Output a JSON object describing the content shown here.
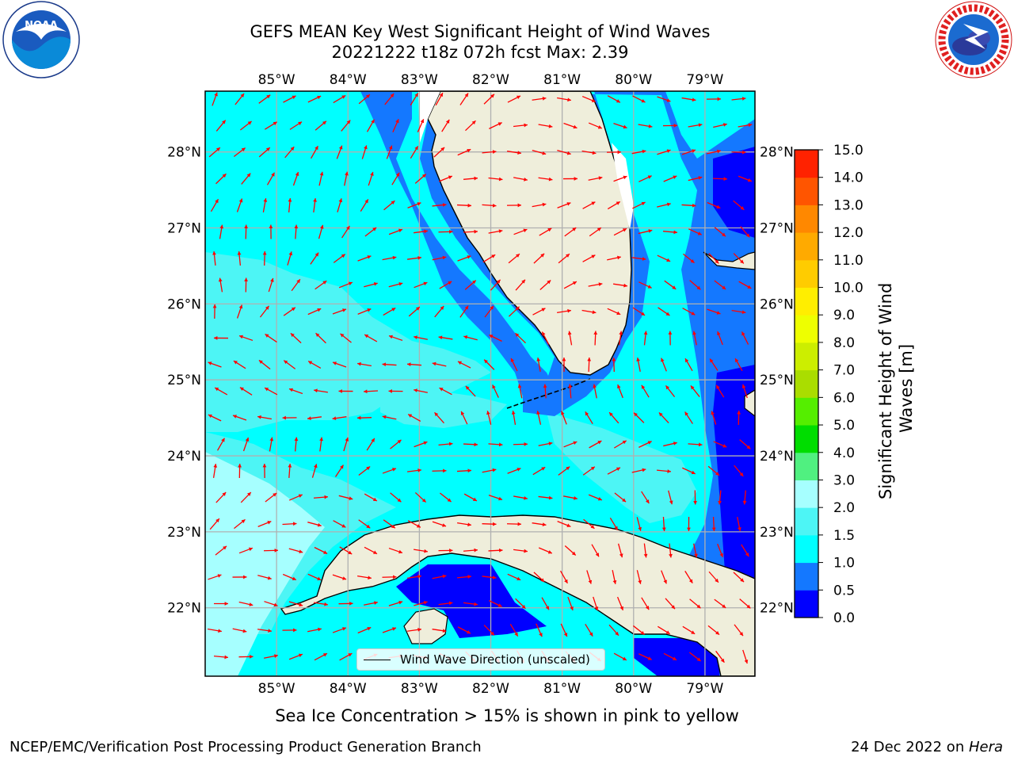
{
  "header": {
    "title_line1": "GEFS MEAN Key West Significant Height of Wind Waves",
    "title_line2": "20221222 t18z 072h fcst   Max: 2.39"
  },
  "logos": {
    "noaa": {
      "icon": "noaa-logo",
      "text": "NOAA",
      "ring_text": "NATIONAL OCEANIC AND ATMOSPHERIC ADMINISTRATION · U.S. DEPARTMENT OF COMMERCE"
    },
    "nws": {
      "icon": "nws-logo",
      "ring_text": "NATIONAL WEATHER SERVICE"
    }
  },
  "map": {
    "lon_ticks": [
      "85°W",
      "84°W",
      "83°W",
      "82°W",
      "81°W",
      "80°W",
      "79°W"
    ],
    "lat_ticks": [
      "28°N",
      "27°N",
      "26°N",
      "25°N",
      "24°N",
      "23°N",
      "22°N"
    ],
    "lon_range": [
      -86.0,
      -78.3
    ],
    "lat_range": [
      21.1,
      28.8
    ],
    "colors": {
      "land": "#efeedb",
      "arrow": "#ff0000",
      "grid": "#b0b0b0"
    },
    "legend": {
      "label": "Wind Wave Direction (unscaled)"
    }
  },
  "colorbar": {
    "label": "Significant Height of Wind Waves [m]",
    "tick_labels": [
      "0.0",
      "0.5",
      "1.0",
      "1.5",
      "2.0",
      "3.0",
      "4.0",
      "5.0",
      "6.0",
      "7.0",
      "8.0",
      "9.0",
      "10.0",
      "11.0",
      "12.0",
      "13.0",
      "14.0",
      "15.0"
    ],
    "colors": [
      "#0000ff",
      "#1478ff",
      "#00ffff",
      "#4df5f5",
      "#a6ffff",
      "#50f080",
      "#00dd00",
      "#55ee00",
      "#aadd00",
      "#ccee00",
      "#eeff00",
      "#ffee00",
      "#ffcc00",
      "#ffaa00",
      "#ff8800",
      "#ff5500",
      "#ff2200"
    ]
  },
  "caption": "Sea Ice Concentration > 15% is shown in pink to yellow",
  "footer": {
    "left": "NCEP/EMC/Verification Post Processing Product Generation Branch",
    "right_prefix": "24 Dec 2022 on ",
    "right_machine": "Hera"
  }
}
